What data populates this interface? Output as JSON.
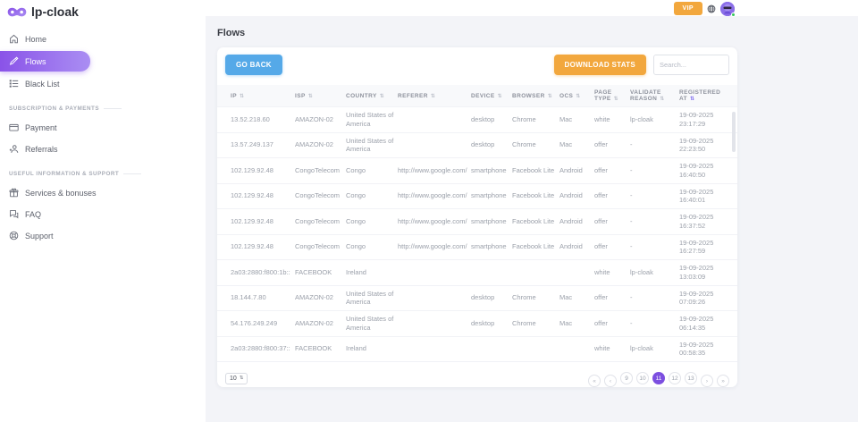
{
  "brand": {
    "name": "lp-cloak"
  },
  "topbar": {
    "vip_label": "VIP"
  },
  "sidebar": {
    "items": [
      {
        "label": "Home"
      },
      {
        "label": "Flows",
        "active": true
      },
      {
        "label": "Black List"
      }
    ],
    "sections": [
      {
        "label": "SUBSCRIPTION & PAYMENTS",
        "items": [
          {
            "label": "Payment"
          },
          {
            "label": "Referrals"
          }
        ]
      },
      {
        "label": "USEFUL INFORMATION & SUPPORT",
        "items": [
          {
            "label": "Services & bonuses"
          },
          {
            "label": "FAQ"
          },
          {
            "label": "Support"
          }
        ]
      }
    ]
  },
  "page": {
    "title": "Flows"
  },
  "toolbar": {
    "go_back_label": "GO BACK",
    "download_stats_label": "DOWNLOAD STATS",
    "search_placeholder": "Search..."
  },
  "table": {
    "sort_icon": "⇅",
    "columns": [
      {
        "key": "ip",
        "label": "IP"
      },
      {
        "key": "isp",
        "label": "ISP"
      },
      {
        "key": "country",
        "label": "COUNTRY"
      },
      {
        "key": "referer",
        "label": "REFERER"
      },
      {
        "key": "device",
        "label": "DEVICE"
      },
      {
        "key": "browser",
        "label": "BROWSER"
      },
      {
        "key": "ocs",
        "label": "OCS"
      },
      {
        "key": "page_type",
        "label": "PAGE TYPE"
      },
      {
        "key": "validate_reason",
        "label": "VALIDATE REASON"
      },
      {
        "key": "registered_at",
        "label": "REGISTERED AT",
        "sorted": true
      }
    ],
    "rows": [
      {
        "ip": "13.52.218.60",
        "isp": "AMAZON-02",
        "country": "United States of America",
        "referer": "",
        "device": "desktop",
        "browser": "Chrome",
        "ocs": "Mac",
        "page_type": "white",
        "validate_reason": "lp-cloak",
        "date": "19-09-2025",
        "time": "23:17:29"
      },
      {
        "ip": "13.57.249.137",
        "isp": "AMAZON-02",
        "country": "United States of America",
        "referer": "",
        "device": "desktop",
        "browser": "Chrome",
        "ocs": "Mac",
        "page_type": "offer",
        "validate_reason": "-",
        "date": "19-09-2025",
        "time": "22:23:50"
      },
      {
        "ip": "102.129.92.48",
        "isp": "CongoTelecom",
        "country": "Congo",
        "referer": "http://www.google.com/",
        "device": "smartphone",
        "browser": "Facebook Lite",
        "ocs": "Android",
        "page_type": "offer",
        "validate_reason": "-",
        "date": "19-09-2025",
        "time": "16:40:50"
      },
      {
        "ip": "102.129.92.48",
        "isp": "CongoTelecom",
        "country": "Congo",
        "referer": "http://www.google.com/",
        "device": "smartphone",
        "browser": "Facebook Lite",
        "ocs": "Android",
        "page_type": "offer",
        "validate_reason": "-",
        "date": "19-09-2025",
        "time": "16:40:01"
      },
      {
        "ip": "102.129.92.48",
        "isp": "CongoTelecom",
        "country": "Congo",
        "referer": "http://www.google.com/",
        "device": "smartphone",
        "browser": "Facebook Lite",
        "ocs": "Android",
        "page_type": "offer",
        "validate_reason": "-",
        "date": "19-09-2025",
        "time": "16:37:52"
      },
      {
        "ip": "102.129.92.48",
        "isp": "CongoTelecom",
        "country": "Congo",
        "referer": "http://www.google.com/",
        "device": "smartphone",
        "browser": "Facebook Lite",
        "ocs": "Android",
        "page_type": "offer",
        "validate_reason": "-",
        "date": "19-09-2025",
        "time": "16:27:59"
      },
      {
        "ip": "2a03:2880:f800:1b::",
        "isp": "FACEBOOK",
        "country": "Ireland",
        "referer": "",
        "device": "",
        "browser": "",
        "ocs": "",
        "page_type": "white",
        "validate_reason": "lp-cloak",
        "date": "19-09-2025",
        "time": "13:03:09"
      },
      {
        "ip": "18.144.7.80",
        "isp": "AMAZON-02",
        "country": "United States of America",
        "referer": "",
        "device": "desktop",
        "browser": "Chrome",
        "ocs": "Mac",
        "page_type": "offer",
        "validate_reason": "-",
        "date": "19-09-2025",
        "time": "07:09:26"
      },
      {
        "ip": "54.176.249.249",
        "isp": "AMAZON-02",
        "country": "United States of America",
        "referer": "",
        "device": "desktop",
        "browser": "Chrome",
        "ocs": "Mac",
        "page_type": "offer",
        "validate_reason": "-",
        "date": "19-09-2025",
        "time": "06:14:35"
      },
      {
        "ip": "2a03:2880:f800:37::",
        "isp": "FACEBOOK",
        "country": "Ireland",
        "referer": "",
        "device": "",
        "browser": "",
        "ocs": "",
        "page_type": "white",
        "validate_reason": "lp-cloak",
        "date": "19-09-2025",
        "time": "00:58:35"
      }
    ]
  },
  "pagination": {
    "page_size": "10",
    "pages": [
      "9",
      "10",
      "11",
      "12",
      "13"
    ],
    "active": "11",
    "nav": {
      "first": "«",
      "prev": "‹",
      "next": "›",
      "last": "»"
    }
  },
  "colors": {
    "accent_purple": "#7c4fe0",
    "pill_gradient_start": "#8a53e8",
    "pill_gradient_end": "#aa8ef3",
    "amber": "#f2a73d",
    "blue": "#55a9e8",
    "online_green": "#35c75a"
  }
}
